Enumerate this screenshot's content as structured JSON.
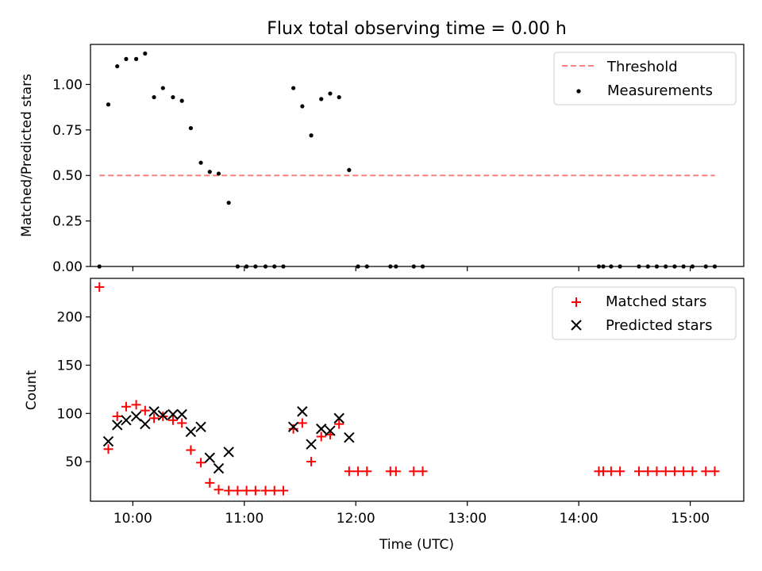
{
  "chart_data": [
    {
      "type": "scatter",
      "title": "Flux total observing time = 0.00 h",
      "xlabel": "",
      "ylabel": "Matched/Predicted stars",
      "xlim": [
        9.62,
        15.48
      ],
      "ylim": [
        0,
        1.22
      ],
      "yticks": [
        0.0,
        0.25,
        0.5,
        0.75,
        1.0
      ],
      "ytick_labels": [
        "0.00",
        "0.25",
        "0.50",
        "0.75",
        "1.00"
      ],
      "xticks": [
        10,
        11,
        12,
        13,
        14,
        15
      ],
      "legend_position": "top-right",
      "legend": [
        "Threshold",
        "Measurements"
      ],
      "threshold": {
        "name": "Threshold",
        "y": 0.5,
        "x_start": 9.7,
        "x_end": 15.22,
        "color": "#ff7f7f",
        "style": "dashed"
      },
      "series": [
        {
          "name": "Measurements",
          "color": "#000000",
          "marker": "dot",
          "points": [
            [
              9.7,
              0.0
            ],
            [
              9.78,
              0.89
            ],
            [
              9.86,
              1.1
            ],
            [
              9.94,
              1.14
            ],
            [
              10.03,
              1.14
            ],
            [
              10.11,
              1.17
            ],
            [
              10.19,
              0.93
            ],
            [
              10.27,
              0.98
            ],
            [
              10.36,
              0.93
            ],
            [
              10.44,
              0.91
            ],
            [
              10.52,
              0.76
            ],
            [
              10.61,
              0.57
            ],
            [
              10.69,
              0.52
            ],
            [
              10.77,
              0.51
            ],
            [
              10.86,
              0.35
            ],
            [
              10.94,
              0.0
            ],
            [
              11.02,
              0.0
            ],
            [
              11.1,
              0.0
            ],
            [
              11.19,
              0.0
            ],
            [
              11.27,
              0.0
            ],
            [
              11.35,
              0.0
            ],
            [
              11.44,
              0.98
            ],
            [
              11.52,
              0.88
            ],
            [
              11.6,
              0.72
            ],
            [
              11.69,
              0.92
            ],
            [
              11.77,
              0.95
            ],
            [
              11.85,
              0.93
            ],
            [
              11.94,
              0.53
            ],
            [
              12.02,
              0.0
            ],
            [
              12.1,
              0.0
            ],
            [
              12.31,
              0.0
            ],
            [
              12.36,
              0.0
            ],
            [
              12.52,
              0.0
            ],
            [
              12.6,
              0.0
            ],
            [
              14.18,
              0.0
            ],
            [
              14.22,
              0.0
            ],
            [
              14.29,
              0.0
            ],
            [
              14.37,
              0.0
            ],
            [
              14.54,
              0.0
            ],
            [
              14.62,
              0.0
            ],
            [
              14.7,
              0.0
            ],
            [
              14.78,
              0.0
            ],
            [
              14.86,
              0.0
            ],
            [
              14.94,
              0.0
            ],
            [
              15.02,
              0.0
            ],
            [
              15.14,
              0.0
            ],
            [
              15.22,
              0.0
            ]
          ]
        }
      ]
    },
    {
      "type": "scatter",
      "title": "",
      "xlabel": "Time (UTC)",
      "ylabel": "Count",
      "xlim": [
        9.62,
        15.48
      ],
      "ylim": [
        9,
        240
      ],
      "yticks": [
        50,
        100,
        150,
        200
      ],
      "ytick_labels": [
        "50",
        "100",
        "150",
        "200"
      ],
      "xticks": [
        10,
        11,
        12,
        13,
        14,
        15
      ],
      "xtick_labels": [
        "10:00",
        "11:00",
        "12:00",
        "13:00",
        "14:00",
        "15:00"
      ],
      "legend_position": "top-right",
      "legend": [
        "Matched stars",
        "Predicted stars"
      ],
      "series": [
        {
          "name": "Matched stars",
          "color": "#ff0000",
          "marker": "plus",
          "points": [
            [
              9.7,
              231
            ],
            [
              9.78,
              63
            ],
            [
              9.86,
              97
            ],
            [
              9.94,
              107
            ],
            [
              10.03,
              109
            ],
            [
              10.11,
              103
            ],
            [
              10.19,
              95
            ],
            [
              10.27,
              97
            ],
            [
              10.36,
              93
            ],
            [
              10.44,
              90
            ],
            [
              10.52,
              62
            ],
            [
              10.61,
              49
            ],
            [
              10.69,
              28
            ],
            [
              10.77,
              21
            ],
            [
              10.86,
              20
            ],
            [
              10.94,
              20
            ],
            [
              11.02,
              20
            ],
            [
              11.1,
              20
            ],
            [
              11.19,
              20
            ],
            [
              11.27,
              20
            ],
            [
              11.35,
              20
            ],
            [
              11.44,
              84
            ],
            [
              11.52,
              90
            ],
            [
              11.6,
              50
            ],
            [
              11.69,
              76
            ],
            [
              11.77,
              78
            ],
            [
              11.85,
              89
            ],
            [
              11.94,
              40
            ],
            [
              12.02,
              40
            ],
            [
              12.1,
              40
            ],
            [
              12.31,
              40
            ],
            [
              12.36,
              40
            ],
            [
              12.52,
              40
            ],
            [
              12.6,
              40
            ],
            [
              14.18,
              40
            ],
            [
              14.22,
              40
            ],
            [
              14.29,
              40
            ],
            [
              14.37,
              40
            ],
            [
              14.54,
              40
            ],
            [
              14.62,
              40
            ],
            [
              14.7,
              40
            ],
            [
              14.78,
              40
            ],
            [
              14.86,
              40
            ],
            [
              14.94,
              40
            ],
            [
              15.02,
              40
            ],
            [
              15.14,
              40
            ],
            [
              15.22,
              40
            ]
          ]
        },
        {
          "name": "Predicted stars",
          "color": "#000000",
          "marker": "x",
          "points": [
            [
              9.78,
              71
            ],
            [
              9.86,
              88
            ],
            [
              9.94,
              93
            ],
            [
              10.03,
              97
            ],
            [
              10.11,
              89
            ],
            [
              10.19,
              102
            ],
            [
              10.27,
              98
            ],
            [
              10.36,
              99
            ],
            [
              10.44,
              99
            ],
            [
              10.52,
              81
            ],
            [
              10.61,
              86
            ],
            [
              10.69,
              54
            ],
            [
              10.77,
              43
            ],
            [
              10.86,
              60
            ],
            [
              11.44,
              86
            ],
            [
              11.52,
              102
            ],
            [
              11.6,
              68
            ],
            [
              11.69,
              84
            ],
            [
              11.77,
              82
            ],
            [
              11.85,
              95
            ],
            [
              11.94,
              75
            ]
          ]
        }
      ]
    }
  ]
}
